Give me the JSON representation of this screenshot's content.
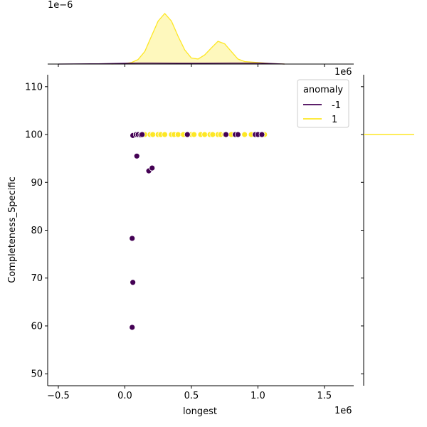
{
  "chart_data": {
    "type": "scatter",
    "title": "",
    "xlabel": "longest",
    "ylabel": "Completeness_Specific",
    "x_offset_label": "1e6",
    "top_marginal_offset_label": "1e−6",
    "xlim": [
      -0.58,
      1.72
    ],
    "ylim": [
      47.5,
      112.5
    ],
    "x_ticks": [
      -0.5,
      0.0,
      0.5,
      1.0,
      1.5
    ],
    "x_tick_labels": [
      "−0.5",
      "0.0",
      "0.5",
      "1.0",
      "1.5"
    ],
    "y_ticks": [
      50,
      60,
      70,
      80,
      90,
      100,
      110
    ],
    "y_tick_labels": [
      "50",
      "60",
      "70",
      "80",
      "90",
      "100",
      "110"
    ],
    "grid": false,
    "legend": {
      "title": "anomaly",
      "location": "top-right",
      "entries": [
        "-1",
        "1"
      ]
    },
    "series": [
      {
        "name": "-1",
        "color": "#440154",
        "points": [
          [
            0.06,
            99.8
          ],
          [
            0.085,
            100.0
          ],
          [
            0.1,
            100.0
          ],
          [
            0.12,
            99.9
          ],
          [
            0.13,
            100.0
          ],
          [
            0.47,
            100.0
          ],
          [
            0.76,
            100.0
          ],
          [
            0.83,
            100.0
          ],
          [
            0.85,
            100.0
          ],
          [
            0.98,
            100.0
          ],
          [
            1.0,
            100.0
          ],
          [
            1.03,
            100.0
          ],
          [
            0.09,
            95.5
          ],
          [
            0.18,
            92.4
          ],
          [
            0.205,
            93.0
          ],
          [
            0.055,
            78.3
          ],
          [
            0.06,
            69.1
          ],
          [
            0.055,
            59.7
          ]
        ]
      },
      {
        "name": "1",
        "color": "#fde725",
        "points": [
          [
            0.11,
            100.0
          ],
          [
            0.15,
            100.0
          ],
          [
            0.19,
            100.0
          ],
          [
            0.21,
            100.0
          ],
          [
            0.25,
            100.0
          ],
          [
            0.27,
            100.0
          ],
          [
            0.3,
            100.0
          ],
          [
            0.35,
            100.0
          ],
          [
            0.37,
            100.0
          ],
          [
            0.4,
            100.0
          ],
          [
            0.44,
            100.0
          ],
          [
            0.5,
            100.0
          ],
          [
            0.52,
            100.0
          ],
          [
            0.57,
            100.0
          ],
          [
            0.6,
            100.0
          ],
          [
            0.64,
            100.0
          ],
          [
            0.66,
            100.0
          ],
          [
            0.7,
            100.0
          ],
          [
            0.72,
            100.0
          ],
          [
            0.75,
            100.0
          ],
          [
            0.8,
            100.0
          ],
          [
            0.9,
            100.0
          ],
          [
            0.95,
            100.0
          ],
          [
            1.05,
            100.0
          ]
        ]
      }
    ],
    "marginal_x_density": {
      "series": [
        {
          "name": "1",
          "color": "#fde725",
          "x": [
            -0.1,
            0.0,
            0.05,
            0.1,
            0.15,
            0.2,
            0.25,
            0.3,
            0.35,
            0.4,
            0.45,
            0.5,
            0.55,
            0.6,
            0.65,
            0.7,
            0.75,
            0.8,
            0.85,
            0.9,
            1.0,
            1.1,
            1.2
          ],
          "y": [
            0.0,
            0.01,
            0.03,
            0.09,
            0.25,
            0.55,
            0.85,
            1.0,
            0.85,
            0.55,
            0.28,
            0.12,
            0.1,
            0.18,
            0.32,
            0.45,
            0.4,
            0.25,
            0.1,
            0.05,
            0.03,
            0.01,
            0.0
          ]
        },
        {
          "name": "-1",
          "color": "#440154",
          "x": [
            -0.5,
            -0.2,
            0.0,
            0.1,
            0.2,
            0.4,
            0.6,
            0.8,
            1.0,
            1.2
          ],
          "y": [
            0.0,
            0.005,
            0.015,
            0.02,
            0.02,
            0.015,
            0.015,
            0.02,
            0.02,
            0.0
          ]
        }
      ]
    },
    "marginal_y_density": {
      "series": [
        {
          "name": "1",
          "color": "#fde725",
          "y_value": 100.0
        }
      ]
    }
  }
}
